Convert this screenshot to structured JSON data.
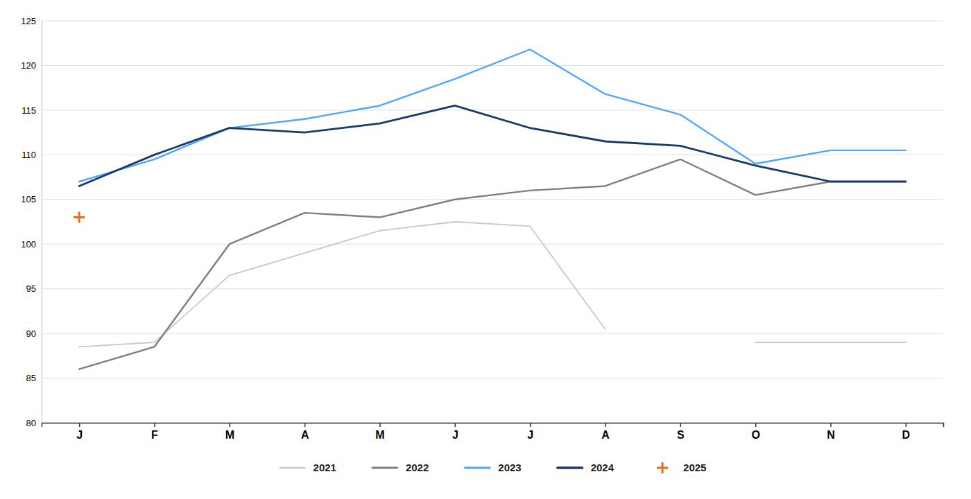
{
  "chart_data": {
    "type": "line",
    "categories": [
      "J",
      "F",
      "M",
      "A",
      "M",
      "J",
      "J",
      "A",
      "S",
      "O",
      "N",
      "D"
    ],
    "series": [
      {
        "name": "2021",
        "color": "#c8c8c8",
        "values": [
          88.5,
          89.0,
          96.5,
          99.0,
          101.5,
          102.5,
          102.0,
          90.5,
          null,
          89.0,
          89.0,
          89.0
        ]
      },
      {
        "name": "2022",
        "color": "#7f7f7f",
        "values": [
          86.0,
          88.5,
          100.0,
          103.5,
          103.0,
          105.0,
          106.0,
          106.5,
          109.5,
          105.5,
          107.0,
          107.0
        ]
      },
      {
        "name": "2023",
        "color": "#4da6ff",
        "values": [
          107.0,
          109.5,
          113.0,
          114.0,
          115.5,
          118.5,
          121.8,
          116.8,
          114.5,
          109.0,
          110.5,
          110.5
        ]
      },
      {
        "name": "2024",
        "color": "#1a3a6b",
        "values": [
          106.5,
          110.0,
          113.0,
          112.5,
          113.5,
          115.5,
          113.0,
          111.5,
          111.0,
          108.8,
          107.0,
          107.0
        ]
      },
      {
        "name": "2025",
        "color": "#e07020",
        "type": "scatter",
        "marker": "plus",
        "values": [
          103.0,
          null,
          null,
          null,
          null,
          null,
          null,
          null,
          null,
          null,
          null,
          null
        ]
      }
    ],
    "ylim": [
      80,
      125
    ],
    "yticks": [
      80,
      85,
      90,
      95,
      100,
      105,
      110,
      115,
      120,
      125
    ],
    "grid": true,
    "legend": "bottom"
  }
}
